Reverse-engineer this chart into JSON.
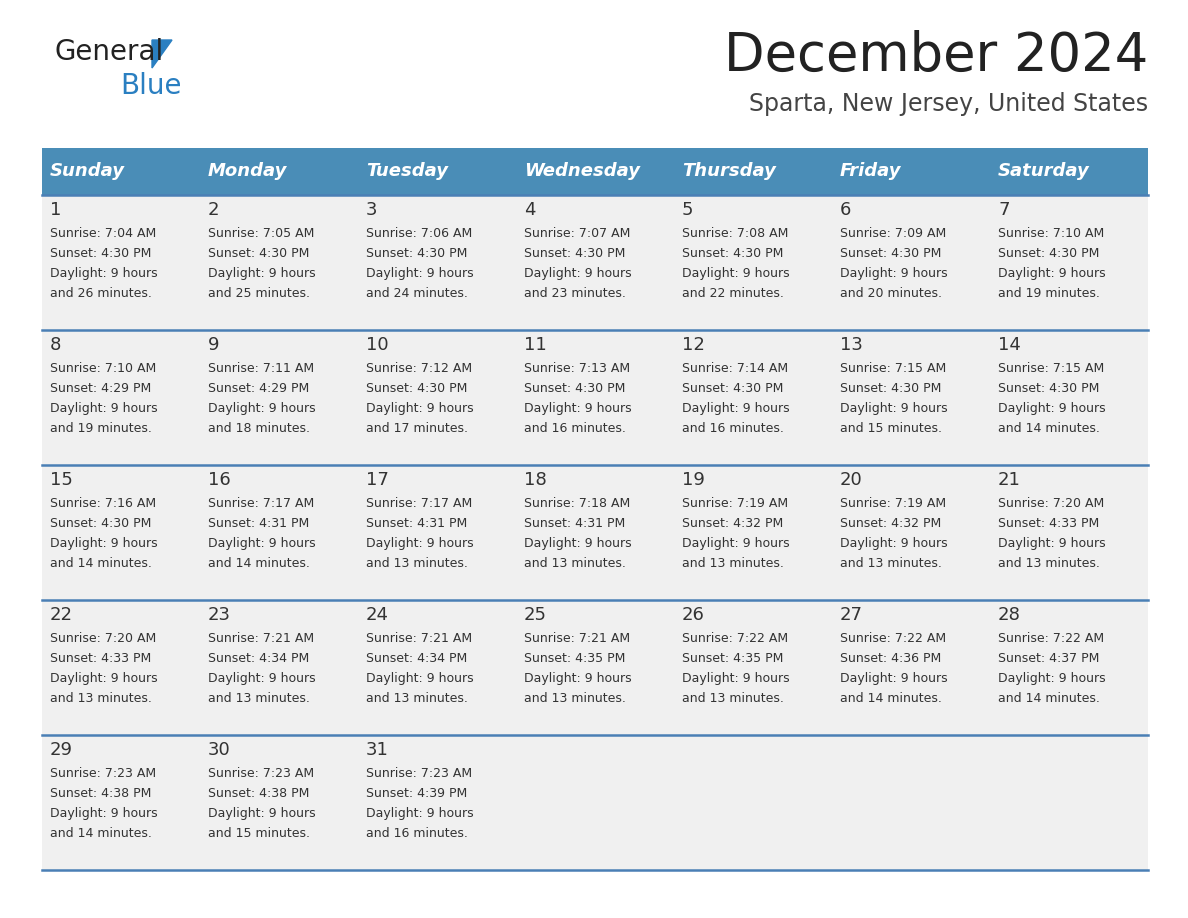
{
  "title": "December 2024",
  "subtitle": "Sparta, New Jersey, United States",
  "header_color": "#4a8db7",
  "header_text_color": "#ffffff",
  "days_of_week": [
    "Sunday",
    "Monday",
    "Tuesday",
    "Wednesday",
    "Thursday",
    "Friday",
    "Saturday"
  ],
  "background_color": "#ffffff",
  "cell_bg": "#f0f0f0",
  "cell_text_color": "#333333",
  "separator_color": "#4a7fb5",
  "calendar_data": [
    [
      {
        "day": "1",
        "sunrise": "7:04 AM",
        "sunset": "4:30 PM",
        "daylight": "9 hours and 26 minutes."
      },
      {
        "day": "2",
        "sunrise": "7:05 AM",
        "sunset": "4:30 PM",
        "daylight": "9 hours and 25 minutes."
      },
      {
        "day": "3",
        "sunrise": "7:06 AM",
        "sunset": "4:30 PM",
        "daylight": "9 hours and 24 minutes."
      },
      {
        "day": "4",
        "sunrise": "7:07 AM",
        "sunset": "4:30 PM",
        "daylight": "9 hours and 23 minutes."
      },
      {
        "day": "5",
        "sunrise": "7:08 AM",
        "sunset": "4:30 PM",
        "daylight": "9 hours and 22 minutes."
      },
      {
        "day": "6",
        "sunrise": "7:09 AM",
        "sunset": "4:30 PM",
        "daylight": "9 hours and 20 minutes."
      },
      {
        "day": "7",
        "sunrise": "7:10 AM",
        "sunset": "4:30 PM",
        "daylight": "9 hours and 19 minutes."
      }
    ],
    [
      {
        "day": "8",
        "sunrise": "7:10 AM",
        "sunset": "4:29 PM",
        "daylight": "9 hours and 19 minutes."
      },
      {
        "day": "9",
        "sunrise": "7:11 AM",
        "sunset": "4:29 PM",
        "daylight": "9 hours and 18 minutes."
      },
      {
        "day": "10",
        "sunrise": "7:12 AM",
        "sunset": "4:30 PM",
        "daylight": "9 hours and 17 minutes."
      },
      {
        "day": "11",
        "sunrise": "7:13 AM",
        "sunset": "4:30 PM",
        "daylight": "9 hours and 16 minutes."
      },
      {
        "day": "12",
        "sunrise": "7:14 AM",
        "sunset": "4:30 PM",
        "daylight": "9 hours and 16 minutes."
      },
      {
        "day": "13",
        "sunrise": "7:15 AM",
        "sunset": "4:30 PM",
        "daylight": "9 hours and 15 minutes."
      },
      {
        "day": "14",
        "sunrise": "7:15 AM",
        "sunset": "4:30 PM",
        "daylight": "9 hours and 14 minutes."
      }
    ],
    [
      {
        "day": "15",
        "sunrise": "7:16 AM",
        "sunset": "4:30 PM",
        "daylight": "9 hours and 14 minutes."
      },
      {
        "day": "16",
        "sunrise": "7:17 AM",
        "sunset": "4:31 PM",
        "daylight": "9 hours and 14 minutes."
      },
      {
        "day": "17",
        "sunrise": "7:17 AM",
        "sunset": "4:31 PM",
        "daylight": "9 hours and 13 minutes."
      },
      {
        "day": "18",
        "sunrise": "7:18 AM",
        "sunset": "4:31 PM",
        "daylight": "9 hours and 13 minutes."
      },
      {
        "day": "19",
        "sunrise": "7:19 AM",
        "sunset": "4:32 PM",
        "daylight": "9 hours and 13 minutes."
      },
      {
        "day": "20",
        "sunrise": "7:19 AM",
        "sunset": "4:32 PM",
        "daylight": "9 hours and 13 minutes."
      },
      {
        "day": "21",
        "sunrise": "7:20 AM",
        "sunset": "4:33 PM",
        "daylight": "9 hours and 13 minutes."
      }
    ],
    [
      {
        "day": "22",
        "sunrise": "7:20 AM",
        "sunset": "4:33 PM",
        "daylight": "9 hours and 13 minutes."
      },
      {
        "day": "23",
        "sunrise": "7:21 AM",
        "sunset": "4:34 PM",
        "daylight": "9 hours and 13 minutes."
      },
      {
        "day": "24",
        "sunrise": "7:21 AM",
        "sunset": "4:34 PM",
        "daylight": "9 hours and 13 minutes."
      },
      {
        "day": "25",
        "sunrise": "7:21 AM",
        "sunset": "4:35 PM",
        "daylight": "9 hours and 13 minutes."
      },
      {
        "day": "26",
        "sunrise": "7:22 AM",
        "sunset": "4:35 PM",
        "daylight": "9 hours and 13 minutes."
      },
      {
        "day": "27",
        "sunrise": "7:22 AM",
        "sunset": "4:36 PM",
        "daylight": "9 hours and 14 minutes."
      },
      {
        "day": "28",
        "sunrise": "7:22 AM",
        "sunset": "4:37 PM",
        "daylight": "9 hours and 14 minutes."
      }
    ],
    [
      {
        "day": "29",
        "sunrise": "7:23 AM",
        "sunset": "4:38 PM",
        "daylight": "9 hours and 14 minutes."
      },
      {
        "day": "30",
        "sunrise": "7:23 AM",
        "sunset": "4:38 PM",
        "daylight": "9 hours and 15 minutes."
      },
      {
        "day": "31",
        "sunrise": "7:23 AM",
        "sunset": "4:39 PM",
        "daylight": "9 hours and 16 minutes."
      },
      null,
      null,
      null,
      null
    ]
  ],
  "logo_general_color": "#222222",
  "logo_blue_color": "#2a7fc1",
  "title_color": "#222222",
  "subtitle_color": "#444444"
}
